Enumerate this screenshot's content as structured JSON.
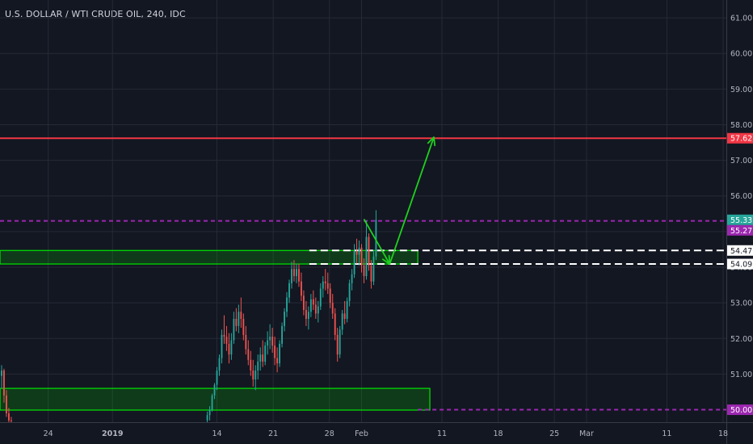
{
  "title": "U.S. DOLLAR / WTI CRUDE OIL, 240, IDC",
  "chart_data": {
    "type": "candlestick",
    "symbol": "U.S. DOLLAR / WTI CRUDE OIL",
    "interval": "240",
    "source": "IDC",
    "y_ticks": [
      "51.00",
      "52.00",
      "53.00",
      "54.00",
      "55.00",
      "56.00",
      "57.00",
      "58.00",
      "59.00",
      "60.00",
      "61.00"
    ],
    "ylim": [
      49.65,
      61.5
    ],
    "x_ticks": [
      {
        "label": "24",
        "day": 24
      },
      {
        "label": "2019",
        "day": 32,
        "bold": true
      },
      {
        "label": "14",
        "day": 45
      },
      {
        "label": "21",
        "day": 52
      },
      {
        "label": "28",
        "day": 59
      },
      {
        "label": "Feb",
        "day": 63
      },
      {
        "label": "11",
        "day": 73
      },
      {
        "label": "18",
        "day": 80
      },
      {
        "label": "25",
        "day": 87
      },
      {
        "label": "Mar",
        "day": 91
      },
      {
        "label": "11",
        "day": 101
      },
      {
        "label": "18",
        "day": 108
      }
    ],
    "x_day_range": [
      18.0,
      108.4
    ],
    "price_tags": [
      {
        "label": "57.62",
        "value": 57.62,
        "bg": "#f23645",
        "fg": "#ffffff"
      },
      {
        "label": "55.33",
        "value": 55.33,
        "bg": "#26a69a",
        "fg": "#ffffff"
      },
      {
        "label": "55.27",
        "value": 55.27,
        "bg": "#9c27b0",
        "fg": "#ffffff"
      },
      {
        "label": "54.47",
        "value": 54.47,
        "bg": "#ffffff",
        "fg": "#131722"
      },
      {
        "label": "54.09",
        "value": 54.09,
        "bg": "#ffffff",
        "fg": "#131722"
      },
      {
        "label": "50.00",
        "value": 50.0,
        "bg": "#9c27b0",
        "fg": "#ffffff"
      }
    ],
    "horizontal_lines": [
      {
        "name": "resistance-red",
        "value": 57.62,
        "color": "#f23645",
        "style": "solid"
      },
      {
        "name": "level-purple-high",
        "value": 55.3,
        "color": "#9c27b0",
        "style": "dashed"
      },
      {
        "name": "level-white-upper",
        "value": 54.47,
        "color": "#ffffff",
        "style": "dashed",
        "from_day": 56.5
      },
      {
        "name": "level-white-lower",
        "value": 54.09,
        "color": "#ffffff",
        "style": "dashed",
        "from_day": 56.5
      },
      {
        "name": "level-purple-low",
        "value": 50.0,
        "color": "#9c27b0",
        "style": "dashed",
        "from_day": 70
      }
    ],
    "zones": [
      {
        "name": "upper-zone",
        "from_day": 18.0,
        "to_day": 70.0,
        "top": 54.47,
        "bottom": 54.09,
        "color": "#00e600"
      },
      {
        "name": "lower-zone",
        "from_day": 18.0,
        "to_day": 71.5,
        "top": 50.6,
        "bottom": 49.99,
        "color": "#00e600"
      }
    ],
    "projection_arrow": {
      "color": "#1ed01e",
      "points": [
        [
          63.3,
          55.35
        ],
        [
          66.5,
          54.09
        ],
        [
          72.0,
          57.65
        ]
      ]
    },
    "candles": [
      [
        18.2,
        50.95,
        51.25,
        50.6,
        51.1
      ],
      [
        18.5,
        51.1,
        51.15,
        50.2,
        50.4
      ],
      [
        18.8,
        50.4,
        50.55,
        49.8,
        49.9
      ],
      [
        19.1,
        49.9,
        50.05,
        49.65,
        49.7
      ],
      [
        19.4,
        49.7,
        49.8,
        49.65,
        49.68
      ],
      [
        43.8,
        49.7,
        49.95,
        49.65,
        49.85
      ],
      [
        44.1,
        49.85,
        50.1,
        49.7,
        50.0
      ],
      [
        44.4,
        50.0,
        50.45,
        49.95,
        50.4
      ],
      [
        44.7,
        50.4,
        50.75,
        50.3,
        50.7
      ],
      [
        45.0,
        50.7,
        51.2,
        50.55,
        51.1
      ],
      [
        45.3,
        51.1,
        51.55,
        50.95,
        51.45
      ],
      [
        45.6,
        51.45,
        52.25,
        51.3,
        52.1
      ],
      [
        45.9,
        52.1,
        52.65,
        51.85,
        52.05
      ],
      [
        46.2,
        52.05,
        52.35,
        51.65,
        51.85
      ],
      [
        46.5,
        51.85,
        52.15,
        51.3,
        51.55
      ],
      [
        46.8,
        51.55,
        52.15,
        51.4,
        51.95
      ],
      [
        47.1,
        51.95,
        52.75,
        51.85,
        52.55
      ],
      [
        47.4,
        52.55,
        52.85,
        52.2,
        52.35
      ],
      [
        47.7,
        52.35,
        52.95,
        52.15,
        52.75
      ],
      [
        48.0,
        52.75,
        53.15,
        52.3,
        52.55
      ],
      [
        48.3,
        52.55,
        52.7,
        51.95,
        52.1
      ],
      [
        48.6,
        52.1,
        52.35,
        51.55,
        51.7
      ],
      [
        48.9,
        51.7,
        51.95,
        51.25,
        51.4
      ],
      [
        49.2,
        51.4,
        51.65,
        50.95,
        51.1
      ],
      [
        49.5,
        51.1,
        51.4,
        50.65,
        50.85
      ],
      [
        49.8,
        50.85,
        51.25,
        50.55,
        51.1
      ],
      [
        50.1,
        51.1,
        51.55,
        50.85,
        51.35
      ],
      [
        50.4,
        51.35,
        51.75,
        51.1,
        51.55
      ],
      [
        50.7,
        51.55,
        51.95,
        51.2,
        51.35
      ],
      [
        51.0,
        51.35,
        51.9,
        51.25,
        51.8
      ],
      [
        51.3,
        51.8,
        52.2,
        51.55,
        51.95
      ],
      [
        51.6,
        51.95,
        52.4,
        51.7,
        52.05
      ],
      [
        51.9,
        52.05,
        52.3,
        51.6,
        51.8
      ],
      [
        52.2,
        51.8,
        52.05,
        51.25,
        51.45
      ],
      [
        52.5,
        51.45,
        51.75,
        51.05,
        51.3
      ],
      [
        52.8,
        51.3,
        51.95,
        51.2,
        51.85
      ],
      [
        53.1,
        51.85,
        52.45,
        51.75,
        52.35
      ],
      [
        53.4,
        52.35,
        52.85,
        52.2,
        52.75
      ],
      [
        53.7,
        52.75,
        53.3,
        52.6,
        53.15
      ],
      [
        54.0,
        53.15,
        53.65,
        53.0,
        53.55
      ],
      [
        54.3,
        53.55,
        54.15,
        53.4,
        53.95
      ],
      [
        54.6,
        53.95,
        54.2,
        53.6,
        53.75
      ],
      [
        54.9,
        53.75,
        54.1,
        53.55,
        53.95
      ],
      [
        55.2,
        53.95,
        54.1,
        53.45,
        53.6
      ],
      [
        55.5,
        53.6,
        53.85,
        53.05,
        53.2
      ],
      [
        55.8,
        53.2,
        53.35,
        52.65,
        52.8
      ],
      [
        56.1,
        52.8,
        53.05,
        52.35,
        52.55
      ],
      [
        56.4,
        52.55,
        52.9,
        52.25,
        52.75
      ],
      [
        56.7,
        52.75,
        53.25,
        52.6,
        53.1
      ],
      [
        57.0,
        53.1,
        53.35,
        52.8,
        52.95
      ],
      [
        57.3,
        52.95,
        53.15,
        52.55,
        52.7
      ],
      [
        57.6,
        52.7,
        53.05,
        52.45,
        52.9
      ],
      [
        57.9,
        52.9,
        53.55,
        52.8,
        53.4
      ],
      [
        58.2,
        53.4,
        53.75,
        53.15,
        53.6
      ],
      [
        58.5,
        53.6,
        53.95,
        53.35,
        53.55
      ],
      [
        58.8,
        53.55,
        53.85,
        53.25,
        53.4
      ],
      [
        59.1,
        53.4,
        53.55,
        52.85,
        53.0
      ],
      [
        59.4,
        53.0,
        53.25,
        52.55,
        52.7
      ],
      [
        59.7,
        52.7,
        52.85,
        51.95,
        52.1
      ],
      [
        60.0,
        52.1,
        52.3,
        51.35,
        51.55
      ],
      [
        60.3,
        51.55,
        52.35,
        51.45,
        52.25
      ],
      [
        60.6,
        52.25,
        52.8,
        52.1,
        52.7
      ],
      [
        60.9,
        52.7,
        53.05,
        52.4,
        52.55
      ],
      [
        61.2,
        52.55,
        53.15,
        52.45,
        53.05
      ],
      [
        61.5,
        53.05,
        53.65,
        52.9,
        53.55
      ],
      [
        61.8,
        53.55,
        53.95,
        53.35,
        53.8
      ],
      [
        62.1,
        53.8,
        54.65,
        53.7,
        54.45
      ],
      [
        62.4,
        54.45,
        54.8,
        54.1,
        54.35
      ],
      [
        62.7,
        54.35,
        54.75,
        54.05,
        54.55
      ],
      [
        63.0,
        54.55,
        54.65,
        53.85,
        54.05
      ],
      [
        63.3,
        54.05,
        54.25,
        53.55,
        53.75
      ],
      [
        63.6,
        53.75,
        55.3,
        53.65,
        54.85
      ],
      [
        63.9,
        54.85,
        54.95,
        53.9,
        54.05
      ],
      [
        64.2,
        54.05,
        54.2,
        53.4,
        53.6
      ],
      [
        64.5,
        53.6,
        54.45,
        53.5,
        54.3
      ],
      [
        64.8,
        54.3,
        55.6,
        54.2,
        55.33
      ]
    ]
  }
}
